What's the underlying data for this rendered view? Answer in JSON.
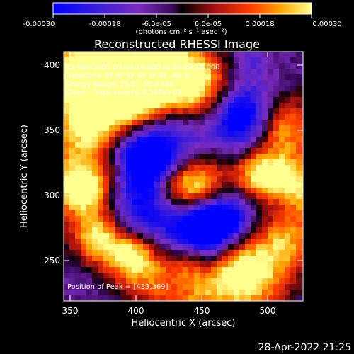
{
  "colorbar": {
    "tick_labels": [
      "-0.00030",
      "-0.00018",
      "-6.0e-05",
      "6.0e-05",
      "0.00018",
      "0.00030"
    ],
    "units_label": "(photons cm⁻² s⁻¹ asec⁻²)",
    "range": [
      -0.0003,
      0.0003
    ]
  },
  "plot": {
    "title": "Reconstructed RHESSI Image",
    "xlabel": "Heliocentric X (arcsec)",
    "ylabel": "Heliocentric Y (arcsec)",
    "x_ticks": [
      "350",
      "400",
      "450",
      "500"
    ],
    "y_ticks": [
      "250",
      "300",
      "350",
      "400"
    ],
    "x_range": [
      337,
      527
    ],
    "y_range": [
      215,
      405
    ]
  },
  "info": {
    "time_range": "12-Mar-2005 03:03:16.000 to 03:09:16.000",
    "detectors": "Detectors: 3F 4F 5F 6F 7F 8F, Att 0",
    "energy_range": "Energy Range: 25.0 - 50.0 keV",
    "method": "Clean    Total counts: 8.395e+03",
    "peak": "Position of Peak = [433,369]"
  },
  "timestamp": "28-Apr-2022 21:25"
}
